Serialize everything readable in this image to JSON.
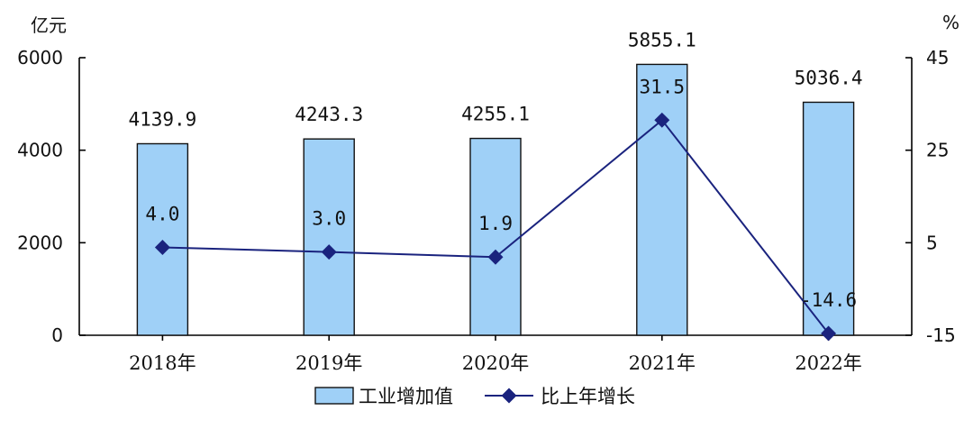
{
  "chart_data": {
    "type": "bar",
    "categories": [
      "2018年",
      "2019年",
      "2020年",
      "2021年",
      "2022年"
    ],
    "series": [
      {
        "name": "工业增加值",
        "type": "bar",
        "axis": "left",
        "values": [
          4139.9,
          4243.3,
          4255.1,
          5855.1,
          5036.4
        ],
        "labels": [
          "4139.9",
          "4243.3",
          "4255.1",
          "5855.1",
          "5036.4"
        ],
        "color": "#9fd0f7"
      },
      {
        "name": "比上年增长",
        "type": "line",
        "axis": "right",
        "values": [
          4.0,
          3.0,
          1.9,
          31.5,
          -14.6
        ],
        "labels": [
          "4.0",
          "3.0",
          "1.9",
          "31.5",
          "-14.6"
        ],
        "color": "#1a237e"
      }
    ],
    "y_left": {
      "unit": "亿元",
      "ylim": [
        0,
        6000
      ],
      "ticks": [
        "0",
        "2000",
        "4000",
        "6000"
      ]
    },
    "y_right": {
      "unit": "%",
      "ylim": [
        -15,
        45
      ],
      "ticks": [
        "-15",
        "5",
        "25",
        "45"
      ]
    },
    "grid": false,
    "legend": "bottom-center"
  }
}
